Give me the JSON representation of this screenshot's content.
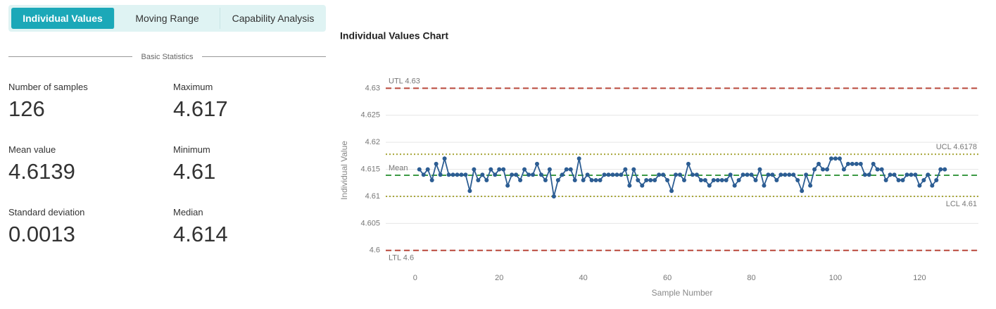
{
  "tabs": [
    "Individual Values",
    "Moving Range",
    "Capability Analysis"
  ],
  "section_title": "Basic Statistics",
  "stats": [
    {
      "label": "Number of samples",
      "value": 126
    },
    {
      "label": "Maximum",
      "value": 4.617
    },
    {
      "label": "Mean value",
      "value": 4.6139
    },
    {
      "label": "Minimum",
      "value": 4.61
    },
    {
      "label": "Standard deviation",
      "value": 0.0013
    },
    {
      "label": "Median",
      "value": 4.614
    }
  ],
  "chart_data": {
    "type": "line",
    "title": "Individual Values Chart",
    "x_label": "Sample Number",
    "y_label": "Individual Value",
    "color": "#2c5d93",
    "grid": true,
    "xlim": [
      -7,
      134
    ],
    "ylim": [
      4.5975,
      4.632
    ],
    "xticks": [
      0,
      20,
      40,
      60,
      80,
      100,
      120
    ],
    "yticks": [
      4.6,
      4.605,
      4.61,
      4.615,
      4.62,
      4.625,
      4.63
    ],
    "x": [
      1,
      2,
      3,
      4,
      5,
      6,
      7,
      8,
      9,
      10,
      11,
      12,
      13,
      14,
      15,
      16,
      17,
      18,
      19,
      20,
      21,
      22,
      23,
      24,
      25,
      26,
      27,
      28,
      29,
      30,
      31,
      32,
      33,
      34,
      35,
      36,
      37,
      38,
      39,
      40,
      41,
      42,
      43,
      44,
      45,
      46,
      47,
      48,
      49,
      50,
      51,
      52,
      53,
      54,
      55,
      56,
      57,
      58,
      59,
      60,
      61,
      62,
      63,
      64,
      65,
      66,
      67,
      68,
      69,
      70,
      71,
      72,
      73,
      74,
      75,
      76,
      77,
      78,
      79,
      80,
      81,
      82,
      83,
      84,
      85,
      86,
      87,
      88,
      89,
      90,
      91,
      92,
      93,
      94,
      95,
      96,
      97,
      98,
      99,
      100,
      101,
      102,
      103,
      104,
      105,
      106,
      107,
      108,
      109,
      110,
      111,
      112,
      113,
      114,
      115,
      116,
      117,
      118,
      119,
      120,
      121,
      122,
      123,
      124,
      125,
      126
    ],
    "values": [
      4.615,
      4.614,
      4.615,
      4.613,
      4.616,
      4.614,
      4.617,
      4.614,
      4.614,
      4.614,
      4.614,
      4.614,
      4.611,
      4.615,
      4.613,
      4.614,
      4.613,
      4.615,
      4.614,
      4.615,
      4.615,
      4.612,
      4.614,
      4.614,
      4.613,
      4.615,
      4.614,
      4.614,
      4.616,
      4.614,
      4.613,
      4.615,
      4.61,
      4.613,
      4.614,
      4.615,
      4.615,
      4.613,
      4.617,
      4.613,
      4.614,
      4.613,
      4.613,
      4.613,
      4.614,
      4.614,
      4.614,
      4.614,
      4.614,
      4.615,
      4.612,
      4.615,
      4.613,
      4.612,
      4.613,
      4.613,
      4.613,
      4.614,
      4.614,
      4.613,
      4.611,
      4.614,
      4.614,
      4.613,
      4.616,
      4.614,
      4.614,
      4.613,
      4.613,
      4.612,
      4.613,
      4.613,
      4.613,
      4.613,
      4.614,
      4.612,
      4.613,
      4.614,
      4.614,
      4.614,
      4.613,
      4.615,
      4.612,
      4.614,
      4.614,
      4.613,
      4.614,
      4.614,
      4.614,
      4.614,
      4.613,
      4.611,
      4.614,
      4.612,
      4.615,
      4.616,
      4.615,
      4.615,
      4.617,
      4.617,
      4.617,
      4.615,
      4.616,
      4.616,
      4.616,
      4.616,
      4.614,
      4.614,
      4.616,
      4.615,
      4.615,
      4.613,
      4.614,
      4.614,
      4.613,
      4.613,
      4.614,
      4.614,
      4.614,
      4.612,
      4.613,
      4.614,
      4.612,
      4.613,
      4.615,
      4.615
    ],
    "reference_lines": [
      {
        "label": "UTL 4.63",
        "value": 4.63,
        "color": "#b9473a",
        "style": "dashed",
        "label_corner": "top-left"
      },
      {
        "label": "UCL 4.6178",
        "value": 4.6178,
        "color": "#a8a63a",
        "style": "dotted",
        "label_corner": "top-right"
      },
      {
        "label": "Mean",
        "value": 4.6139,
        "color": "#3d9a45",
        "style": "dashed",
        "label_corner": "top-left"
      },
      {
        "label": "LCL 4.61",
        "value": 4.61,
        "color": "#a8a63a",
        "style": "dotted",
        "label_corner": "bottom-right"
      },
      {
        "label": "LTL 4.6",
        "value": 4.6,
        "color": "#b9473a",
        "style": "dashed",
        "label_corner": "bottom-left"
      }
    ]
  }
}
